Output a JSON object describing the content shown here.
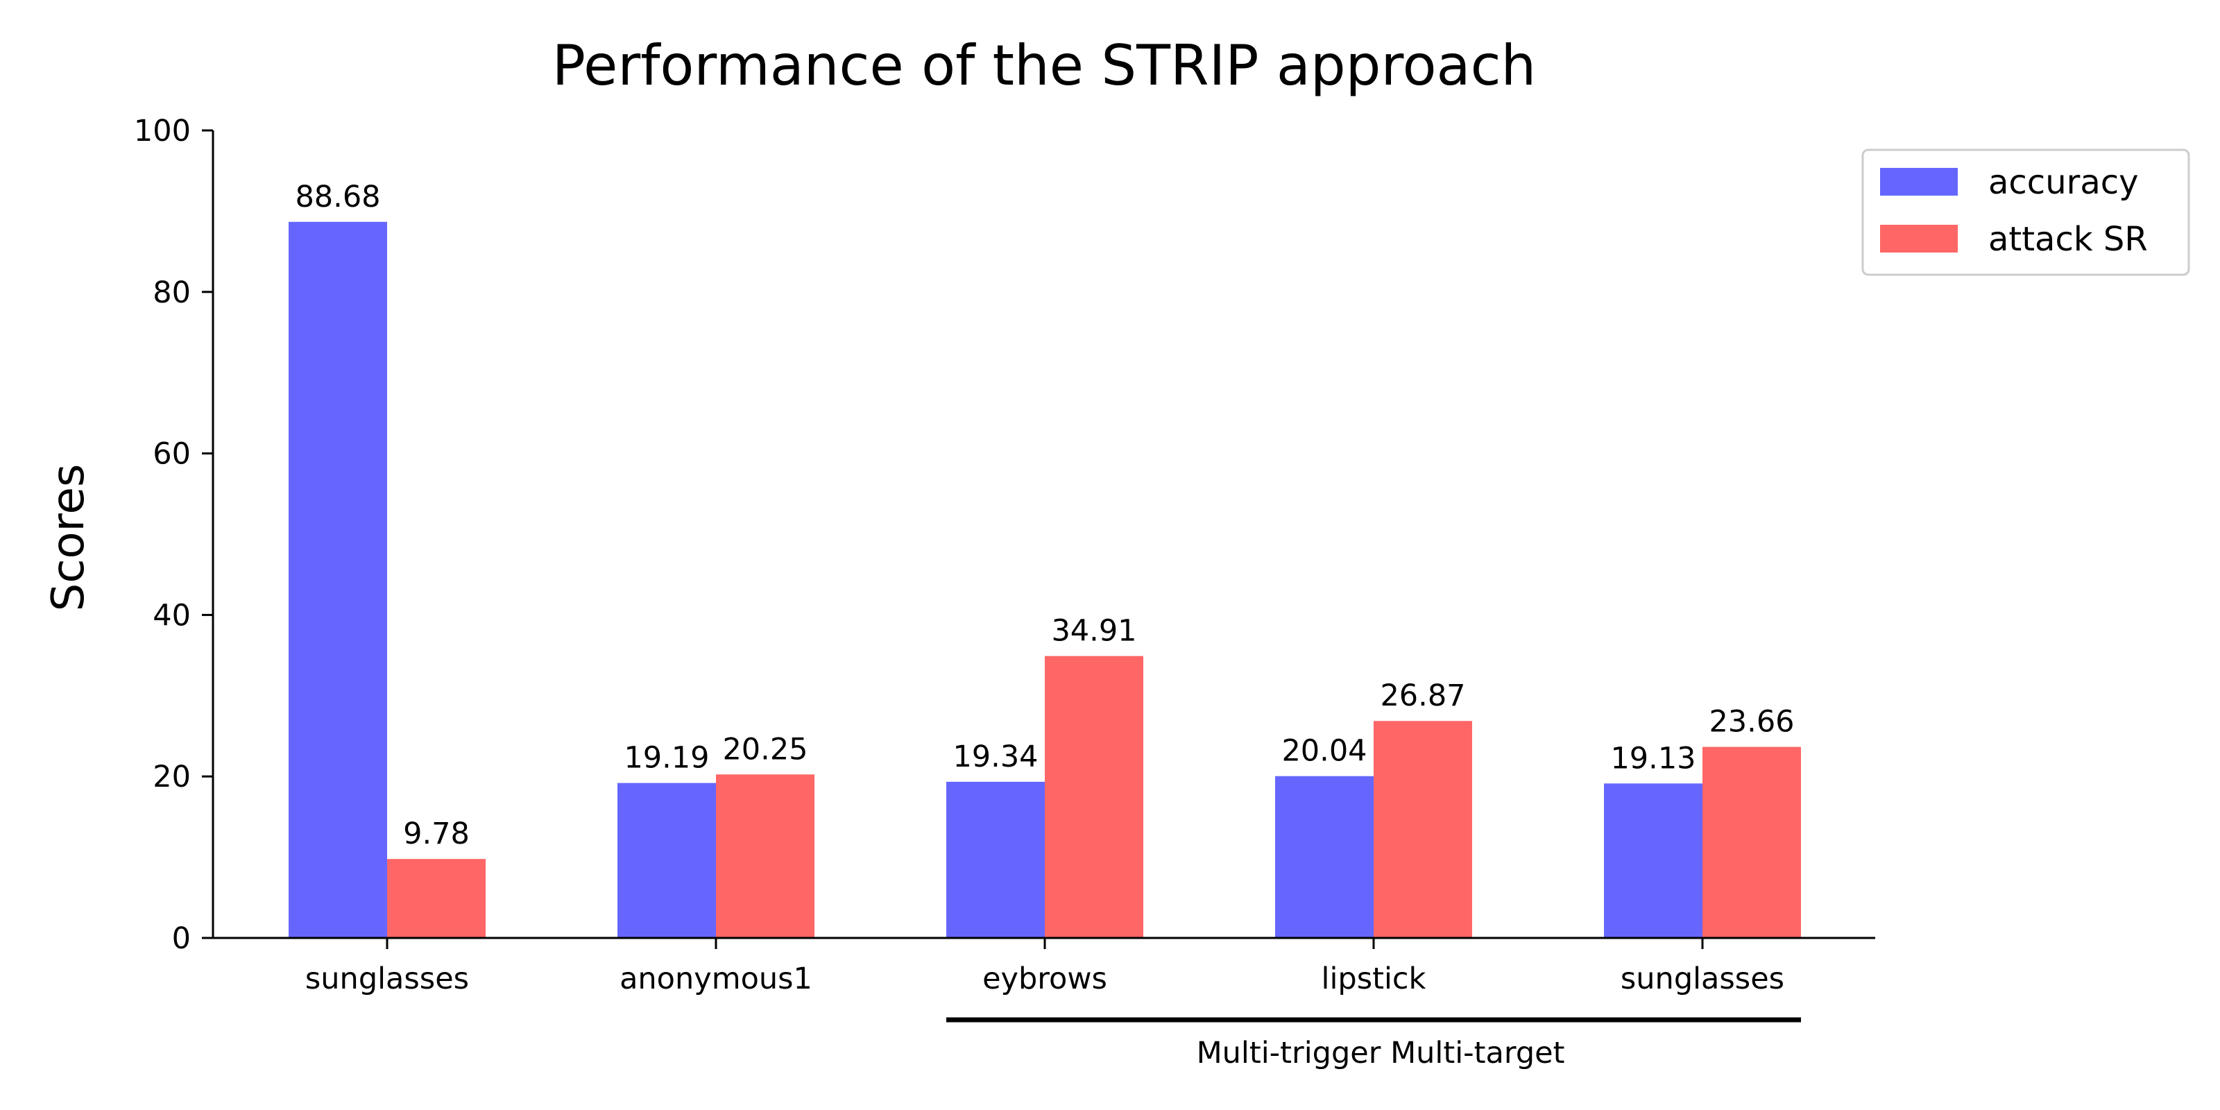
{
  "chart_data": {
    "type": "bar",
    "title": "Performance of the STRIP approach",
    "xlabel": "",
    "ylabel": "Scores",
    "ylim": [
      0,
      100
    ],
    "yticks": [
      0,
      20,
      40,
      60,
      80,
      100
    ],
    "grid": false,
    "legend_position": "top-right",
    "categories": [
      "sunglasses",
      "anonymous1",
      "eybrows",
      "lipstick",
      "sunglasses"
    ],
    "series": [
      {
        "name": "accuracy",
        "color": "#6666ff",
        "values": [
          88.68,
          19.19,
          19.34,
          20.04,
          19.13
        ],
        "labels": [
          "88.68",
          "19.19",
          "19.34",
          "20.04",
          "19.13"
        ]
      },
      {
        "name": "attack SR",
        "color": "#ff6666",
        "values": [
          9.78,
          20.25,
          34.91,
          26.87,
          23.66
        ],
        "labels": [
          "9.78",
          "20.25",
          "34.91",
          "26.87",
          "23.66"
        ]
      }
    ],
    "group_annotation": {
      "text": "Multi-trigger Multi-target",
      "categories": [
        2,
        3,
        4
      ]
    }
  }
}
